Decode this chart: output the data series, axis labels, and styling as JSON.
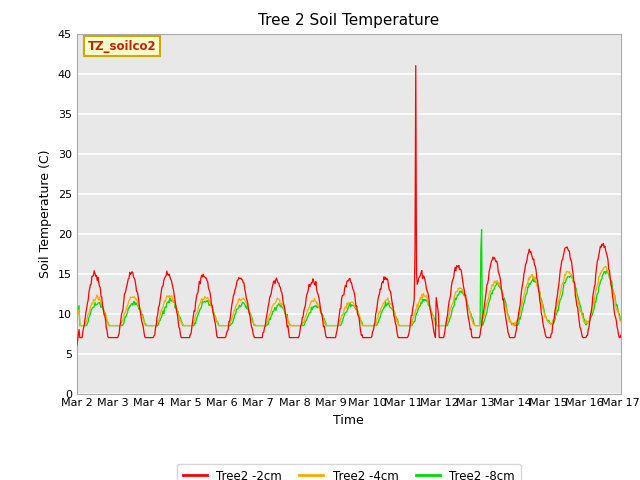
{
  "title": "Tree 2 Soil Temperature",
  "xlabel": "Time",
  "ylabel": "Soil Temperature (C)",
  "ylim": [
    0,
    45
  ],
  "xlim": [
    0,
    15
  ],
  "x_tick_labels": [
    "Mar 2",
    "Mar 3",
    "Mar 4",
    "Mar 5",
    "Mar 6",
    "Mar 7",
    "Mar 8",
    "Mar 9",
    "Mar 10",
    "Mar 11",
    "Mar 12",
    "Mar 13",
    "Mar 14",
    "Mar 15",
    "Mar 16",
    "Mar 17"
  ],
  "annotation_text": "TZ_soilco2",
  "annotation_bg": "#ffffcc",
  "annotation_border": "#ccaa00",
  "bg_color": "#e8e8e8",
  "grid_color": "#ffffff",
  "line_2cm_color": "#ff0000",
  "line_4cm_color": "#ffaa00",
  "line_8cm_color": "#00dd00",
  "legend_labels": [
    "Tree2 -2cm",
    "Tree2 -4cm",
    "Tree2 -8cm"
  ],
  "spike_day": 9.35,
  "spike_value": 41
}
